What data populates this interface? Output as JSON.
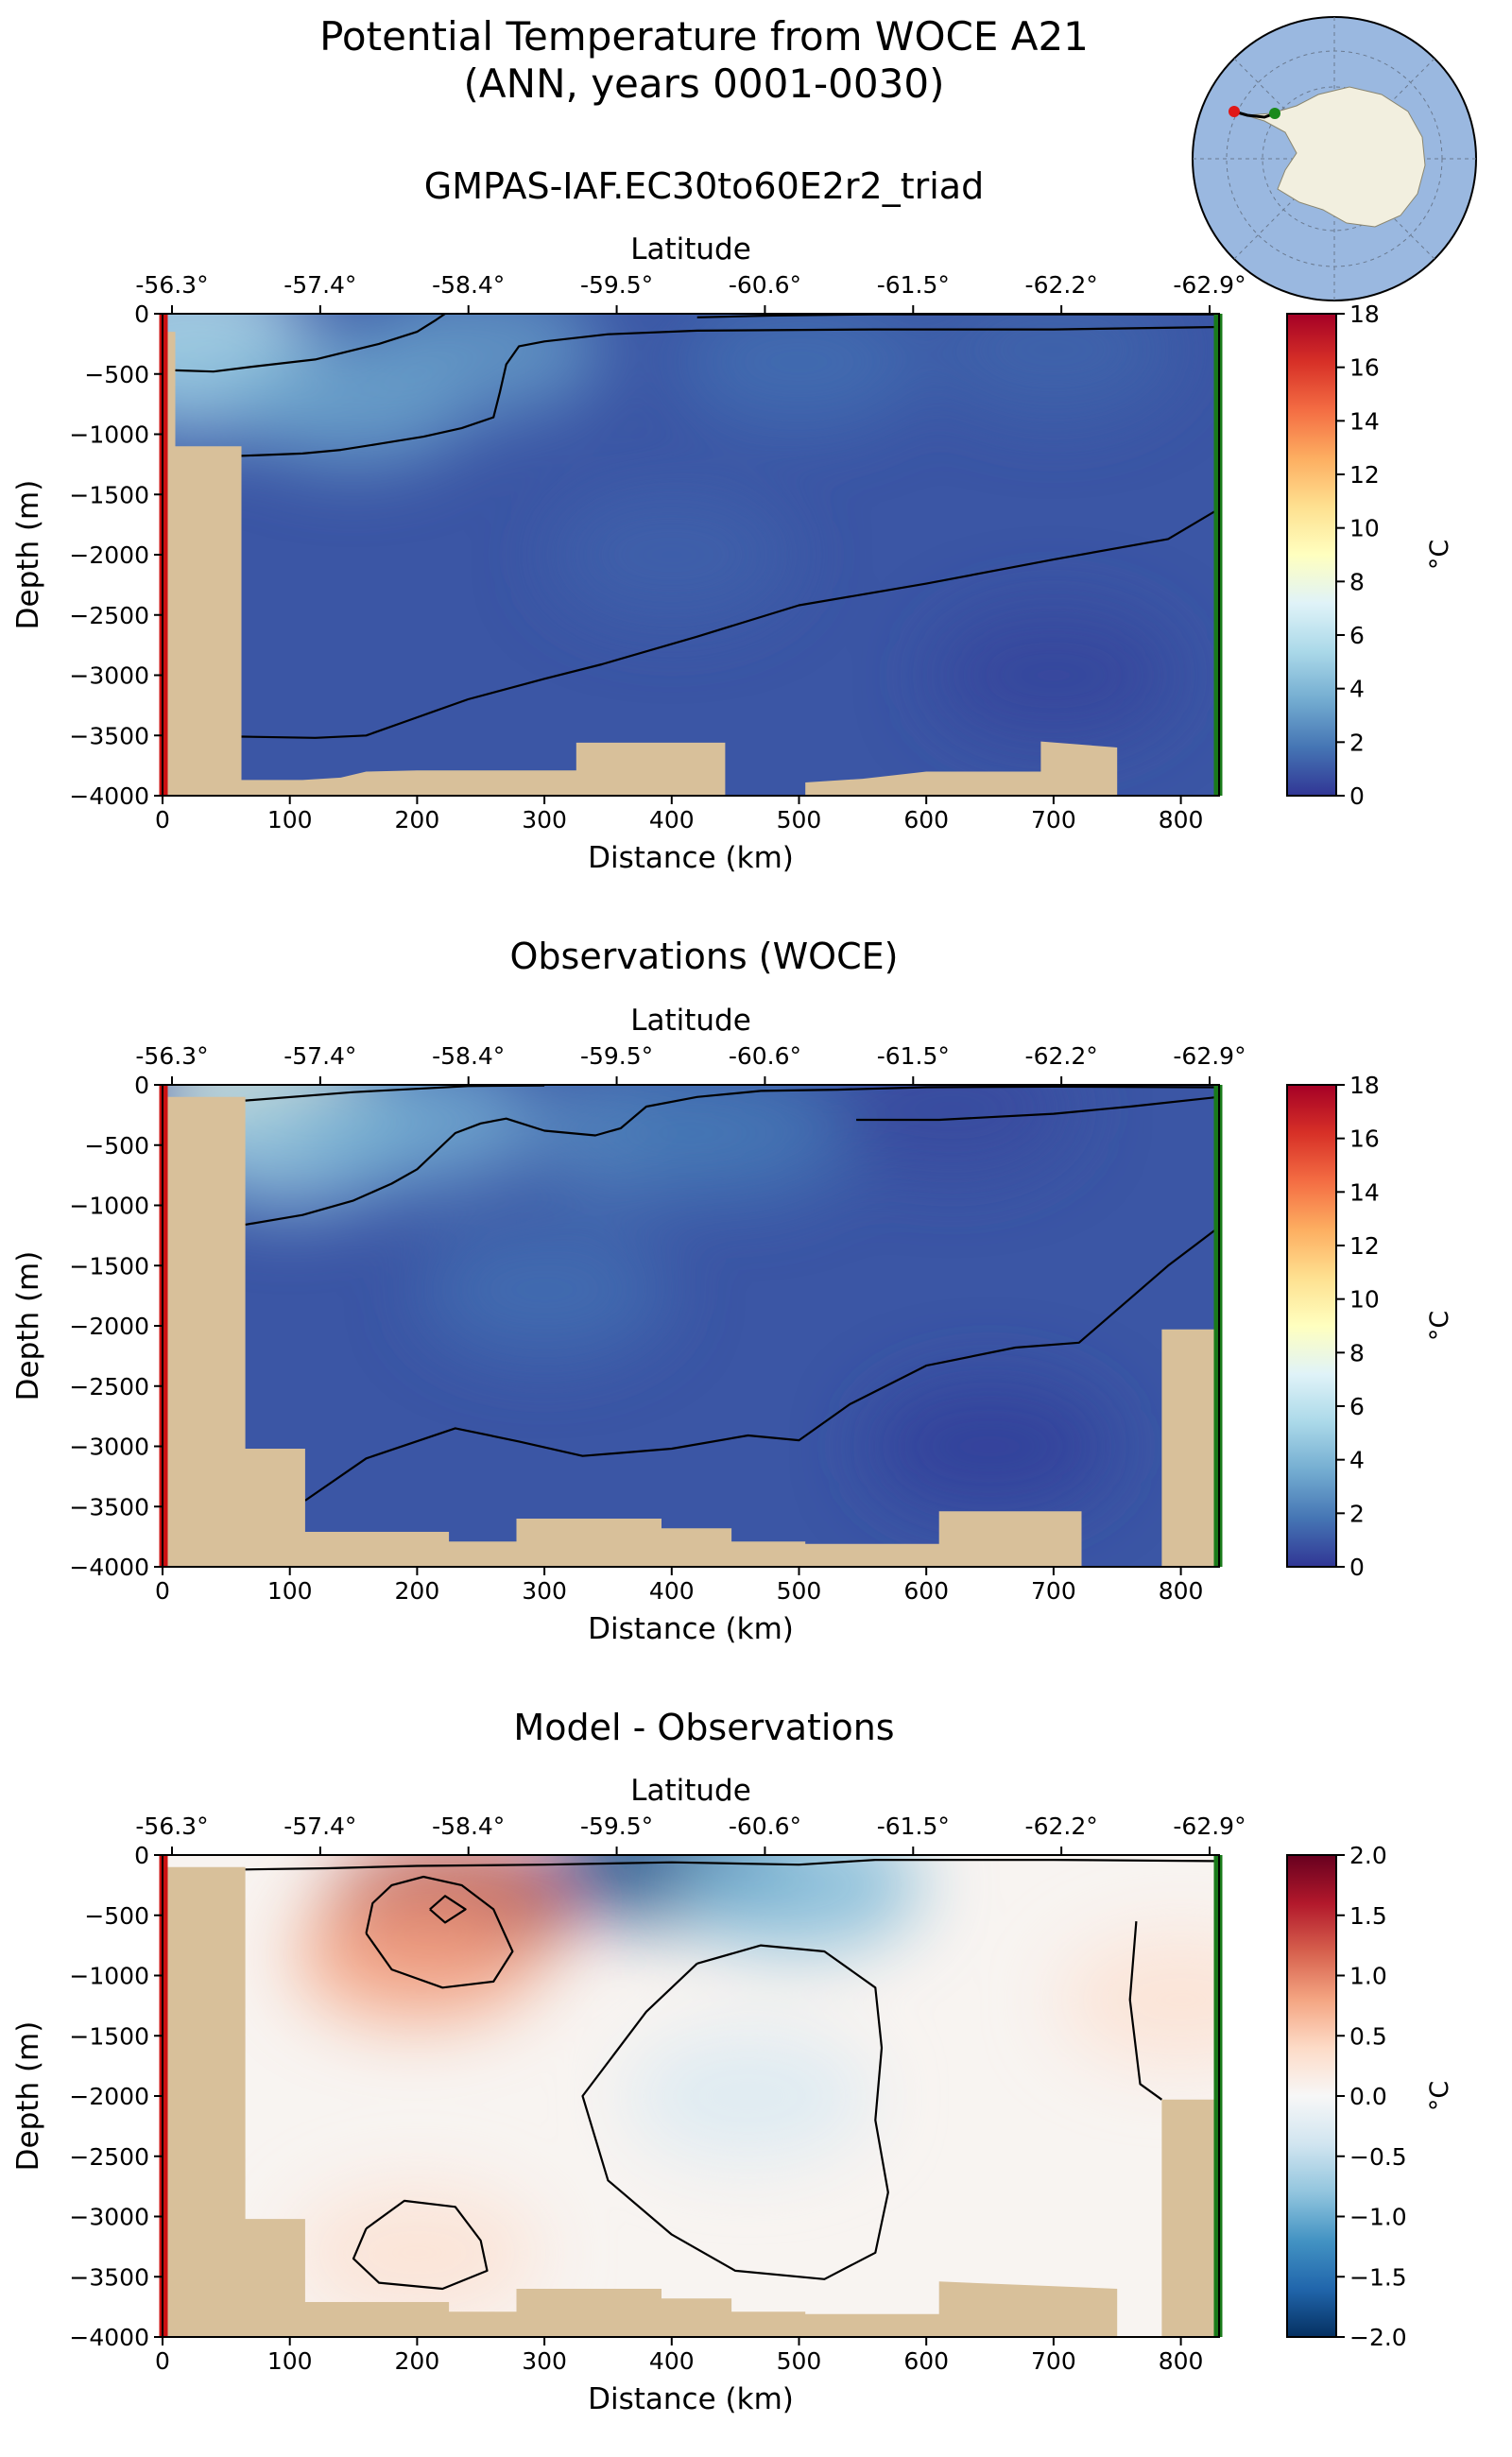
{
  "figure": {
    "title_line1": "Potential Temperature from WOCE A21",
    "title_line2": "(ANN, years 0001-0030)"
  },
  "colors": {
    "land": "#d8c09a",
    "start_marker": "#cc1111",
    "end_marker": "#1a7a1a",
    "contour": "#000000",
    "ocean_globe": "#9ab8e0",
    "antarctica": "#f2efdf"
  },
  "inset_map": {
    "type": "south-polar-stereographic",
    "markers": [
      "start-red",
      "end-green"
    ]
  },
  "chart_data": [
    {
      "type": "heatmap",
      "title": "GMPAS-IAF.EC30to60E2r2_triad",
      "xlabel": "Distance (km)",
      "ylabel": "Depth (m)",
      "top_xlabel": "Latitude",
      "colorbar_label": "°C",
      "colormap": "RdYlBu_r",
      "xlim": [
        0,
        830
      ],
      "ylim": [
        -4000,
        0
      ],
      "clim": [
        0,
        18
      ],
      "x_ticks": [
        0,
        100,
        200,
        300,
        400,
        500,
        600,
        700,
        800
      ],
      "y_ticks": [
        0,
        -500,
        -1000,
        -1500,
        -2000,
        -2500,
        -3000,
        -3500,
        -4000
      ],
      "top_ticks": [
        "-56.3°",
        "-57.4°",
        "-58.4°",
        "-59.5°",
        "-60.6°",
        "-61.5°",
        "-62.2°",
        "-62.9°"
      ],
      "colorbar_ticks": [
        0,
        2,
        4,
        6,
        8,
        10,
        12,
        14,
        16,
        18
      ],
      "bathymetry": [
        [
          0,
          -4000
        ],
        [
          0,
          -150
        ],
        [
          10,
          -150
        ],
        [
          10,
          -1100
        ],
        [
          62,
          -1100
        ],
        [
          62,
          -3870
        ],
        [
          110,
          -3870
        ],
        [
          140,
          -3850
        ],
        [
          160,
          -3800
        ],
        [
          200,
          -3790
        ],
        [
          225,
          -3790
        ],
        [
          325,
          -3790
        ],
        [
          325,
          -3560
        ],
        [
          442,
          -3560
        ],
        [
          442,
          -4000
        ],
        [
          505,
          -4000
        ],
        [
          505,
          -3890
        ],
        [
          550,
          -3860
        ],
        [
          600,
          -3800
        ],
        [
          690,
          -3800
        ],
        [
          690,
          -3550
        ],
        [
          750,
          -3600
        ],
        [
          750,
          -4000
        ]
      ],
      "contours": [
        [
          [
            10,
            -470
          ],
          [
            40,
            -480
          ],
          [
            70,
            -440
          ],
          [
            120,
            -380
          ],
          [
            170,
            -250
          ],
          [
            200,
            -150
          ],
          [
            215,
            -50
          ],
          [
            222,
            0
          ]
        ],
        [
          [
            62,
            -1180
          ],
          [
            110,
            -1160
          ],
          [
            140,
            -1130
          ],
          [
            170,
            -1080
          ],
          [
            205,
            -1020
          ],
          [
            235,
            -950
          ],
          [
            260,
            -860
          ],
          [
            265,
            -650
          ],
          [
            270,
            -420
          ],
          [
            280,
            -270
          ],
          [
            300,
            -230
          ],
          [
            350,
            -170
          ],
          [
            420,
            -140
          ],
          [
            560,
            -130
          ],
          [
            700,
            -130
          ],
          [
            830,
            -110
          ]
        ],
        [
          [
            62,
            -3510
          ],
          [
            120,
            -3520
          ],
          [
            160,
            -3500
          ],
          [
            200,
            -3350
          ],
          [
            240,
            -3200
          ],
          [
            300,
            -3030
          ],
          [
            345,
            -2910
          ],
          [
            420,
            -2680
          ],
          [
            500,
            -2420
          ],
          [
            600,
            -2240
          ],
          [
            700,
            -2040
          ],
          [
            790,
            -1870
          ],
          [
            830,
            -1620
          ]
        ],
        [
          [
            420,
            -30
          ],
          [
            480,
            -15
          ],
          [
            560,
            -5
          ],
          [
            660,
            -5
          ],
          [
            760,
            -5
          ],
          [
            830,
            -5
          ]
        ]
      ],
      "field_anchors": [
        {
          "x": 20,
          "y": -100,
          "v": 6.2
        },
        {
          "x": 30,
          "y": -500,
          "v": 4.6
        },
        {
          "x": 150,
          "y": -700,
          "v": 3.4
        },
        {
          "x": 250,
          "y": -300,
          "v": 3.0
        },
        {
          "x": 500,
          "y": -400,
          "v": 1.6
        },
        {
          "x": 700,
          "y": -300,
          "v": 1.3
        },
        {
          "x": 400,
          "y": -2000,
          "v": 1.2
        },
        {
          "x": 700,
          "y": -3000,
          "v": 0.4
        }
      ]
    },
    {
      "type": "heatmap",
      "title": "Observations (WOCE)",
      "xlabel": "Distance (km)",
      "ylabel": "Depth (m)",
      "top_xlabel": "Latitude",
      "colorbar_label": "°C",
      "colormap": "RdYlBu_r",
      "xlim": [
        0,
        830
      ],
      "ylim": [
        -4000,
        0
      ],
      "clim": [
        0,
        18
      ],
      "x_ticks": [
        0,
        100,
        200,
        300,
        400,
        500,
        600,
        700,
        800
      ],
      "y_ticks": [
        0,
        -500,
        -1000,
        -1500,
        -2000,
        -2500,
        -3000,
        -3500,
        -4000
      ],
      "top_ticks": [
        "-56.3°",
        "-57.4°",
        "-58.4°",
        "-59.5°",
        "-60.6°",
        "-61.5°",
        "-62.2°",
        "-62.9°"
      ],
      "colorbar_ticks": [
        0,
        2,
        4,
        6,
        8,
        10,
        12,
        14,
        16,
        18
      ],
      "bathymetry": [
        [
          0,
          -4000
        ],
        [
          0,
          -100
        ],
        [
          65,
          -100
        ],
        [
          65,
          -3020
        ],
        [
          112,
          -3020
        ],
        [
          112,
          -3710
        ],
        [
          225,
          -3710
        ],
        [
          225,
          -3790
        ],
        [
          278,
          -3790
        ],
        [
          278,
          -3600
        ],
        [
          392,
          -3600
        ],
        [
          392,
          -3680
        ],
        [
          447,
          -3680
        ],
        [
          447,
          -3790
        ],
        [
          505,
          -3790
        ],
        [
          505,
          -3810
        ],
        [
          610,
          -3810
        ],
        [
          610,
          -3540
        ],
        [
          722,
          -3540
        ],
        [
          722,
          -4000
        ],
        [
          785,
          -4000
        ],
        [
          785,
          -2030
        ],
        [
          830,
          -2030
        ],
        [
          830,
          -4000
        ]
      ],
      "contours": [
        [
          [
            65,
            -130
          ],
          [
            150,
            -60
          ],
          [
            240,
            -10
          ],
          [
            300,
            -5
          ]
        ],
        [
          [
            65,
            -1160
          ],
          [
            110,
            -1080
          ],
          [
            150,
            -960
          ],
          [
            180,
            -820
          ],
          [
            200,
            -700
          ],
          [
            230,
            -400
          ],
          [
            250,
            -320
          ],
          [
            270,
            -280
          ],
          [
            300,
            -380
          ],
          [
            340,
            -420
          ],
          [
            360,
            -360
          ],
          [
            380,
            -180
          ],
          [
            420,
            -100
          ],
          [
            470,
            -50
          ],
          [
            530,
            -40
          ],
          [
            600,
            -20
          ],
          [
            700,
            -15
          ],
          [
            830,
            -20
          ]
        ],
        [
          [
            545,
            -290
          ],
          [
            610,
            -290
          ],
          [
            700,
            -240
          ],
          [
            760,
            -180
          ],
          [
            830,
            -100
          ]
        ],
        [
          [
            112,
            -3450
          ],
          [
            160,
            -3100
          ],
          [
            230,
            -2850
          ],
          [
            280,
            -2960
          ],
          [
            330,
            -3080
          ],
          [
            400,
            -3020
          ],
          [
            460,
            -2910
          ],
          [
            500,
            -2950
          ],
          [
            540,
            -2650
          ],
          [
            600,
            -2330
          ],
          [
            670,
            -2180
          ],
          [
            720,
            -2140
          ],
          [
            790,
            -1500
          ],
          [
            830,
            -1180
          ]
        ]
      ],
      "field_anchors": [
        {
          "x": 80,
          "y": -50,
          "v": 8.0
        },
        {
          "x": 100,
          "y": -500,
          "v": 4.5
        },
        {
          "x": 200,
          "y": -300,
          "v": 3.6
        },
        {
          "x": 380,
          "y": -400,
          "v": 2.4
        },
        {
          "x": 450,
          "y": -400,
          "v": 1.8
        },
        {
          "x": 620,
          "y": -200,
          "v": 0.6
        },
        {
          "x": 300,
          "y": -1700,
          "v": 1.6
        },
        {
          "x": 650,
          "y": -3000,
          "v": 0.3
        }
      ]
    },
    {
      "type": "heatmap",
      "title": "Model - Observations",
      "xlabel": "Distance (km)",
      "ylabel": "Depth (m)",
      "top_xlabel": "Latitude",
      "colorbar_label": "°C",
      "colormap": "RdBu_r",
      "xlim": [
        0,
        830
      ],
      "ylim": [
        -4000,
        0
      ],
      "clim": [
        -2,
        2
      ],
      "x_ticks": [
        0,
        100,
        200,
        300,
        400,
        500,
        600,
        700,
        800
      ],
      "y_ticks": [
        0,
        -500,
        -1000,
        -1500,
        -2000,
        -2500,
        -3000,
        -3500,
        -4000
      ],
      "top_ticks": [
        "-56.3°",
        "-57.4°",
        "-58.4°",
        "-59.5°",
        "-60.6°",
        "-61.5°",
        "-62.2°",
        "-62.9°"
      ],
      "colorbar_ticks": [
        "2.0",
        "1.5",
        "1.0",
        "0.5",
        "0.0",
        "−0.5",
        "−1.0",
        "−1.5",
        "−2.0"
      ],
      "bathymetry": [
        [
          0,
          -4000
        ],
        [
          0,
          -100
        ],
        [
          65,
          -100
        ],
        [
          65,
          -3020
        ],
        [
          112,
          -3020
        ],
        [
          112,
          -3710
        ],
        [
          225,
          -3710
        ],
        [
          225,
          -3790
        ],
        [
          278,
          -3790
        ],
        [
          278,
          -3600
        ],
        [
          392,
          -3600
        ],
        [
          392,
          -3680
        ],
        [
          447,
          -3680
        ],
        [
          447,
          -3790
        ],
        [
          505,
          -3790
        ],
        [
          505,
          -3810
        ],
        [
          610,
          -3810
        ],
        [
          610,
          -3540
        ],
        [
          750,
          -3600
        ],
        [
          750,
          -4000
        ],
        [
          785,
          -4000
        ],
        [
          785,
          -2030
        ],
        [
          830,
          -2030
        ],
        [
          830,
          -4000
        ]
      ],
      "contours": [
        [
          [
            160,
            -650
          ],
          [
            180,
            -950
          ],
          [
            220,
            -1100
          ],
          [
            260,
            -1050
          ],
          [
            275,
            -800
          ],
          [
            260,
            -450
          ],
          [
            235,
            -250
          ],
          [
            205,
            -180
          ],
          [
            180,
            -250
          ],
          [
            165,
            -400
          ],
          [
            160,
            -650
          ]
        ],
        [
          [
            210,
            -450
          ],
          [
            222,
            -560
          ],
          [
            238,
            -450
          ],
          [
            222,
            -340
          ],
          [
            210,
            -450
          ]
        ],
        [
          [
            420,
            -900
          ],
          [
            380,
            -1300
          ],
          [
            330,
            -2000
          ],
          [
            350,
            -2700
          ],
          [
            400,
            -3150
          ],
          [
            450,
            -3450
          ],
          [
            520,
            -3520
          ],
          [
            560,
            -3300
          ],
          [
            570,
            -2800
          ],
          [
            560,
            -2200
          ],
          [
            565,
            -1600
          ],
          [
            560,
            -1100
          ],
          [
            520,
            -800
          ],
          [
            470,
            -750
          ],
          [
            420,
            -900
          ]
        ],
        [
          [
            160,
            -3100
          ],
          [
            150,
            -3350
          ],
          [
            170,
            -3550
          ],
          [
            220,
            -3600
          ],
          [
            255,
            -3450
          ],
          [
            250,
            -3200
          ],
          [
            230,
            -2920
          ],
          [
            190,
            -2870
          ],
          [
            160,
            -3100
          ]
        ],
        [
          [
            765,
            -550
          ],
          [
            760,
            -1200
          ],
          [
            768,
            -1900
          ],
          [
            785,
            -2030
          ]
        ],
        [
          [
            65,
            -120
          ],
          [
            130,
            -110
          ],
          [
            200,
            -90
          ],
          [
            300,
            -80
          ],
          [
            400,
            -60
          ],
          [
            500,
            -80
          ],
          [
            560,
            -40
          ],
          [
            700,
            -40
          ],
          [
            830,
            -50
          ]
        ]
      ],
      "field_anchors": [
        {
          "x": 225,
          "y": -450,
          "v": 1.7
        },
        {
          "x": 200,
          "y": -850,
          "v": 0.8
        },
        {
          "x": 460,
          "y": -2000,
          "v": -0.3
        },
        {
          "x": 400,
          "y": -30,
          "v": -1.8
        },
        {
          "x": 500,
          "y": -250,
          "v": -0.9
        },
        {
          "x": 800,
          "y": -1200,
          "v": 0.3
        },
        {
          "x": 200,
          "y": -3300,
          "v": 0.3
        }
      ]
    }
  ]
}
